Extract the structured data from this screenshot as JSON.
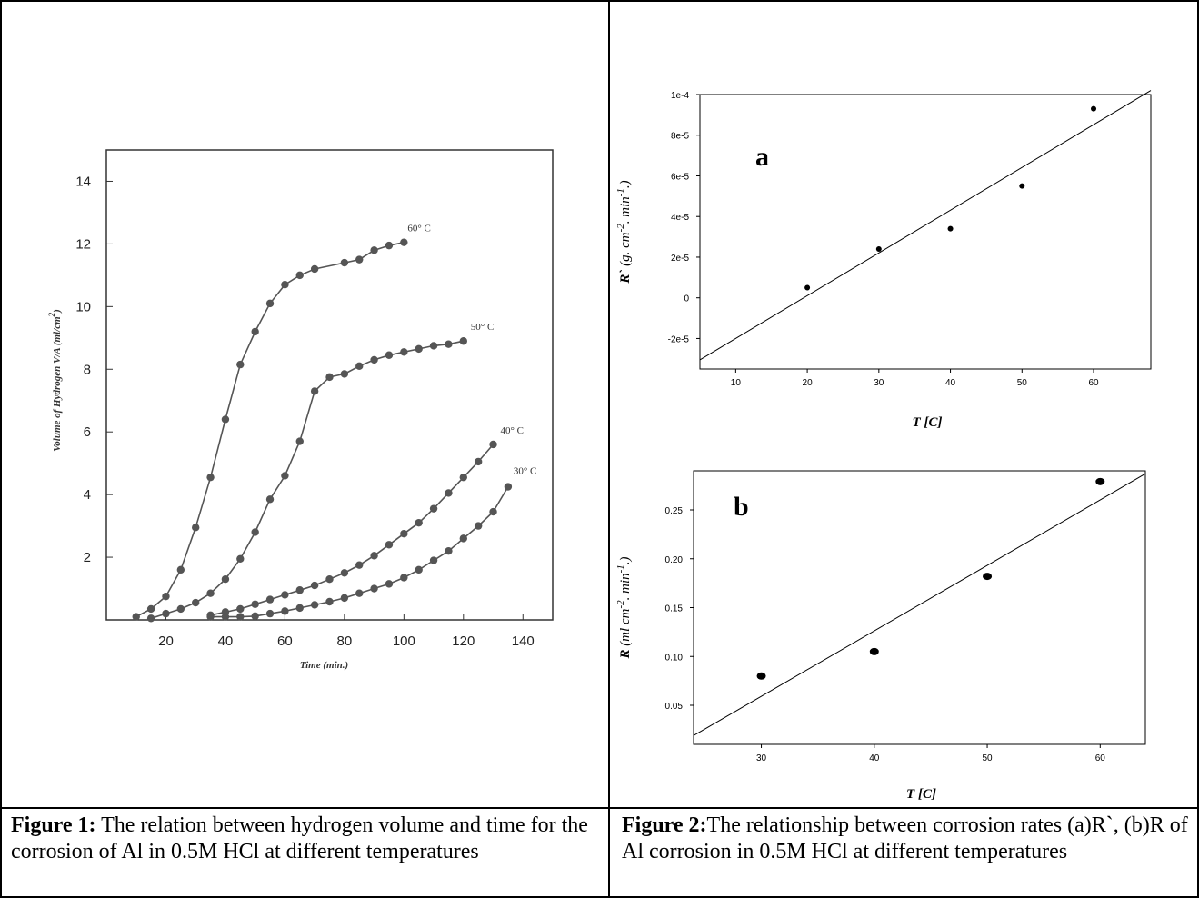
{
  "chart_data": [
    {
      "type": "line",
      "xlabel": "Time (min.)",
      "ylabel": "Volume of Hydrogen V/A (ml/cm",
      "ylabel_sup": "2",
      "ylabel_close": ")",
      "xlim": [
        0,
        150
      ],
      "ylim": [
        0,
        15
      ],
      "xticks": [
        20,
        40,
        60,
        80,
        100,
        120,
        140
      ],
      "yticks": [
        2,
        4,
        6,
        8,
        10,
        12,
        14
      ],
      "series": [
        {
          "name": "60° C",
          "x": [
            10,
            15,
            20,
            25,
            30,
            35,
            40,
            45,
            50,
            55,
            60,
            65,
            70,
            80,
            85,
            90,
            95,
            100
          ],
          "y": [
            0.1,
            0.35,
            0.75,
            1.6,
            2.95,
            4.55,
            6.4,
            8.15,
            9.2,
            10.1,
            10.7,
            11.0,
            11.2,
            11.4,
            11.5,
            11.8,
            11.95,
            12.05
          ]
        },
        {
          "name": "50° C",
          "x": [
            15,
            20,
            25,
            30,
            35,
            40,
            45,
            50,
            55,
            60,
            65,
            70,
            75,
            80,
            85,
            90,
            95,
            100,
            105,
            110,
            115,
            120
          ],
          "y": [
            0.05,
            0.2,
            0.35,
            0.55,
            0.85,
            1.3,
            1.95,
            2.8,
            3.85,
            4.6,
            5.7,
            7.3,
            7.75,
            7.85,
            8.1,
            8.3,
            8.45,
            8.55,
            8.65,
            8.75,
            8.8,
            8.9
          ]
        },
        {
          "name": "40° C",
          "x": [
            35,
            40,
            45,
            50,
            55,
            60,
            65,
            70,
            75,
            80,
            85,
            90,
            95,
            100,
            105,
            110,
            115,
            120,
            125,
            130
          ],
          "y": [
            0.15,
            0.25,
            0.35,
            0.5,
            0.65,
            0.8,
            0.95,
            1.1,
            1.3,
            1.5,
            1.75,
            2.05,
            2.4,
            2.75,
            3.1,
            3.55,
            4.05,
            4.55,
            5.05,
            5.6
          ]
        },
        {
          "name": "30° C",
          "x": [
            35,
            40,
            45,
            50,
            55,
            60,
            65,
            70,
            75,
            80,
            85,
            90,
            95,
            100,
            105,
            110,
            115,
            120,
            125,
            130,
            135
          ],
          "y": [
            0.1,
            0.1,
            0.1,
            0.12,
            0.2,
            0.28,
            0.38,
            0.48,
            0.58,
            0.7,
            0.85,
            1.0,
            1.15,
            1.35,
            1.6,
            1.9,
            2.2,
            2.6,
            3.0,
            3.45,
            4.25
          ]
        }
      ]
    },
    {
      "type": "scatter",
      "panel_label": "a",
      "xlabel": "T [C]",
      "ylabel_parts": [
        "R` ",
        "(g. cm",
        "-2",
        ". min",
        "-1",
        ".)"
      ],
      "xlim": [
        5,
        68
      ],
      "ylim": [
        -3.5e-05,
        0.0001
      ],
      "xticks": [
        10,
        20,
        30,
        40,
        50,
        60
      ],
      "yticks": [
        -2e-05,
        0,
        2e-05,
        4e-05,
        6e-05,
        8e-05,
        0.0001
      ],
      "ytick_labels": [
        "-2e-5",
        "0",
        "2e-5",
        "4e-5",
        "6e-5",
        "8e-5",
        "1e-4"
      ],
      "points": {
        "x": [
          20,
          30,
          40,
          50,
          60
        ],
        "y": [
          5e-06,
          2.4e-05,
          3.4e-05,
          5.5e-05,
          9.3e-05
        ]
      },
      "fit_line": {
        "x": [
          5,
          68
        ],
        "y": [
          -3.05e-05,
          0.000102
        ]
      }
    },
    {
      "type": "scatter",
      "panel_label": "b",
      "xlabel": "T [C]",
      "ylabel_parts": [
        "R ",
        "(ml cm",
        "-2",
        ". min",
        "-1",
        ".)"
      ],
      "xlim": [
        24,
        64
      ],
      "ylim": [
        0.01,
        0.29
      ],
      "xticks": [
        30,
        40,
        50,
        60
      ],
      "yticks": [
        0.05,
        0.1,
        0.15,
        0.2,
        0.25
      ],
      "ytick_labels": [
        "0.05",
        "0.10",
        "0.15",
        "0.20",
        "0.25"
      ],
      "points": {
        "x": [
          30,
          40,
          50,
          60
        ],
        "y": [
          0.08,
          0.105,
          0.182,
          0.279
        ]
      },
      "fit_line": {
        "x": [
          24,
          64
        ],
        "y": [
          0.019,
          0.287
        ]
      }
    }
  ],
  "captions": {
    "fig1_bold": "Figure 1:",
    "fig1_text": " The relation between hydrogen volume and time for the corrosion of Al in 0.5M HCl at different temperatures",
    "fig2_bold": "Figure 2:",
    "fig2_text": "The relationship between corrosion rates (a)R`, (b)R of Al corrosion in 0.5M HCl at different temperatures"
  }
}
